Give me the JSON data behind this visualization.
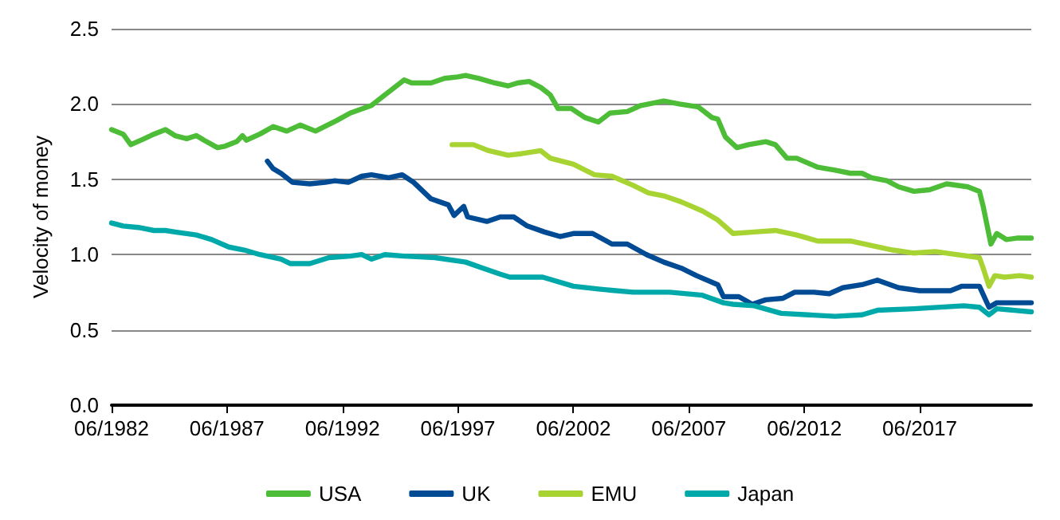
{
  "chart_data": {
    "type": "line",
    "ylabel": "Velocity of money",
    "xlim": [
      "1982-06",
      "2022-04"
    ],
    "xticks": [
      {
        "value": "1982-06",
        "label": "06/1982"
      },
      {
        "value": "1987-06",
        "label": "06/1987"
      },
      {
        "value": "1992-06",
        "label": "06/1992"
      },
      {
        "value": "1997-06",
        "label": "06/1997"
      },
      {
        "value": "2002-06",
        "label": "06/2002"
      },
      {
        "value": "2007-06",
        "label": "06/2007"
      },
      {
        "value": "2012-06",
        "label": "06/2012"
      },
      {
        "value": "2017-06",
        "label": "06/2017"
      }
    ],
    "ylim": [
      0,
      2.5
    ],
    "yticks": [
      {
        "value": 0,
        "label": "0.0"
      },
      {
        "value": 0.5,
        "label": "0.5"
      },
      {
        "value": 1,
        "label": "1.0"
      },
      {
        "value": 1.5,
        "label": "1.5"
      },
      {
        "value": 2,
        "label": "2.0"
      },
      {
        "value": 2.5,
        "label": "2.5"
      }
    ],
    "grid": "y",
    "legend": "bottom",
    "marker": "none",
    "line_style": "solid",
    "series": [
      {
        "name": "USA",
        "color": "#4dbd38",
        "x": [
          "1982-06",
          "1982-12",
          "1983-04",
          "1983-11",
          "1984-04",
          "1984-10",
          "1985-03",
          "1985-09",
          "1986-02",
          "1986-06",
          "1987-01",
          "1987-05",
          "1987-11",
          "1988-02",
          "1988-04",
          "1988-11",
          "1989-06",
          "1990-01",
          "1990-08",
          "1991-04",
          "1992-03",
          "1992-10",
          "1993-09",
          "1994-03",
          "1995-02",
          "1995-06",
          "1996-04",
          "1996-11",
          "1997-06",
          "1997-10",
          "1998-05",
          "1999-01",
          "1999-08",
          "2000-01",
          "2000-07",
          "2001-01",
          "2001-06",
          "2001-10",
          "2002-05",
          "2002-12",
          "2003-07",
          "2004-01",
          "2004-10",
          "2005-05",
          "2006-05",
          "2007-01",
          "2007-11",
          "2008-06",
          "2008-09",
          "2009-01",
          "2009-07",
          "2010-01",
          "2010-10",
          "2011-03",
          "2011-09",
          "2012-02",
          "2013-01",
          "2013-10",
          "2014-06",
          "2014-12",
          "2015-05",
          "2016-01",
          "2016-07",
          "2017-03",
          "2017-11",
          "2018-08",
          "2019-07",
          "2020-01",
          "2020-03",
          "2020-07",
          "2020-10",
          "2021-03",
          "2021-09",
          "2022-04"
        ],
        "values": [
          1.83,
          1.8,
          1.73,
          1.77,
          1.8,
          1.83,
          1.79,
          1.77,
          1.79,
          1.76,
          1.71,
          1.72,
          1.75,
          1.79,
          1.76,
          1.8,
          1.85,
          1.82,
          1.86,
          1.82,
          1.89,
          1.94,
          1.99,
          2.05,
          2.16,
          2.14,
          2.14,
          2.17,
          2.18,
          2.19,
          2.17,
          2.14,
          2.12,
          2.14,
          2.15,
          2.11,
          2.06,
          1.97,
          1.97,
          1.91,
          1.88,
          1.94,
          1.95,
          1.99,
          2.02,
          2.0,
          1.98,
          1.91,
          1.9,
          1.78,
          1.71,
          1.73,
          1.75,
          1.73,
          1.64,
          1.64,
          1.58,
          1.56,
          1.54,
          1.54,
          1.51,
          1.49,
          1.45,
          1.42,
          1.43,
          1.47,
          1.45,
          1.42,
          1.32,
          1.07,
          1.14,
          1.1,
          1.11,
          1.11
        ]
      },
      {
        "name": "UK",
        "color": "#004b93",
        "x": [
          "1989-03",
          "1989-06",
          "1989-10",
          "1990-04",
          "1991-01",
          "1991-09",
          "1992-02",
          "1992-09",
          "1993-04",
          "1993-09",
          "1994-06",
          "1995-01",
          "1995-07",
          "1996-04",
          "1997-01",
          "1997-04",
          "1997-09",
          "1997-11",
          "1998-09",
          "1999-04",
          "1999-11",
          "2000-06",
          "2001-03",
          "2001-11",
          "2002-06",
          "2003-04",
          "2004-02",
          "2004-10",
          "2005-08",
          "2006-05",
          "2007-02",
          "2007-10",
          "2008-09",
          "2008-12",
          "2009-08",
          "2010-03",
          "2010-10",
          "2011-07",
          "2012-01",
          "2012-11",
          "2013-07",
          "2014-02",
          "2014-12",
          "2015-08",
          "2016-07",
          "2017-06",
          "2018-10",
          "2019-04",
          "2020-01",
          "2020-06",
          "2020-10",
          "2021-08",
          "2022-04"
        ],
        "values": [
          1.62,
          1.57,
          1.54,
          1.48,
          1.47,
          1.48,
          1.49,
          1.48,
          1.52,
          1.53,
          1.51,
          1.53,
          1.48,
          1.37,
          1.33,
          1.26,
          1.32,
          1.25,
          1.22,
          1.25,
          1.25,
          1.19,
          1.15,
          1.12,
          1.14,
          1.14,
          1.07,
          1.07,
          1.0,
          0.95,
          0.91,
          0.86,
          0.8,
          0.72,
          0.72,
          0.67,
          0.7,
          0.71,
          0.75,
          0.75,
          0.74,
          0.78,
          0.8,
          0.83,
          0.78,
          0.76,
          0.76,
          0.79,
          0.79,
          0.65,
          0.68,
          0.68,
          0.68
        ]
      },
      {
        "name": "EMU",
        "color": "#a8d433",
        "x": [
          "1997-03",
          "1998-02",
          "1998-10",
          "1999-08",
          "2000-03",
          "2001-01",
          "2001-06",
          "2002-06",
          "2003-05",
          "2004-02",
          "2005-01",
          "2005-09",
          "2006-05",
          "2007-02",
          "2008-01",
          "2008-09",
          "2009-05",
          "2010-04",
          "2011-03",
          "2012-02",
          "2013-01",
          "2014-06",
          "2015-05",
          "2016-04",
          "2017-03",
          "2018-02",
          "2019-01",
          "2020-01",
          "2020-03",
          "2020-06",
          "2020-09",
          "2021-02",
          "2021-10",
          "2022-04"
        ],
        "values": [
          1.73,
          1.73,
          1.69,
          1.66,
          1.67,
          1.69,
          1.64,
          1.6,
          1.53,
          1.52,
          1.46,
          1.41,
          1.39,
          1.35,
          1.29,
          1.23,
          1.14,
          1.15,
          1.16,
          1.13,
          1.09,
          1.09,
          1.06,
          1.03,
          1.01,
          1.02,
          1.0,
          0.98,
          0.91,
          0.79,
          0.86,
          0.85,
          0.86,
          0.85
        ]
      },
      {
        "name": "Japan",
        "color": "#00a9a9",
        "x": [
          "1982-06",
          "1982-12",
          "1983-08",
          "1984-04",
          "1984-10",
          "1985-03",
          "1986-02",
          "1986-10",
          "1987-07",
          "1988-03",
          "1988-11",
          "1989-10",
          "1990-03",
          "1991-01",
          "1991-11",
          "1992-10",
          "1993-04",
          "1993-09",
          "1994-04",
          "1995-02",
          "1996-06",
          "1997-10",
          "1998-07",
          "1999-04",
          "1999-09",
          "2001-02",
          "2002-06",
          "2003-08",
          "2005-01",
          "2006-08",
          "2008-01",
          "2008-12",
          "2009-05",
          "2010-04",
          "2011-06",
          "2012-08",
          "2013-10",
          "2014-12",
          "2015-08",
          "2017-03",
          "2019-05",
          "2020-01",
          "2020-06",
          "2020-10",
          "2022-04"
        ],
        "values": [
          1.21,
          1.19,
          1.18,
          1.16,
          1.16,
          1.15,
          1.13,
          1.1,
          1.05,
          1.03,
          1.0,
          0.97,
          0.94,
          0.94,
          0.98,
          0.99,
          1.0,
          0.97,
          1.0,
          0.99,
          0.98,
          0.95,
          0.91,
          0.87,
          0.85,
          0.85,
          0.79,
          0.77,
          0.75,
          0.75,
          0.73,
          0.68,
          0.67,
          0.66,
          0.61,
          0.6,
          0.59,
          0.6,
          0.63,
          0.64,
          0.66,
          0.65,
          0.6,
          0.64,
          0.62
        ]
      }
    ]
  }
}
